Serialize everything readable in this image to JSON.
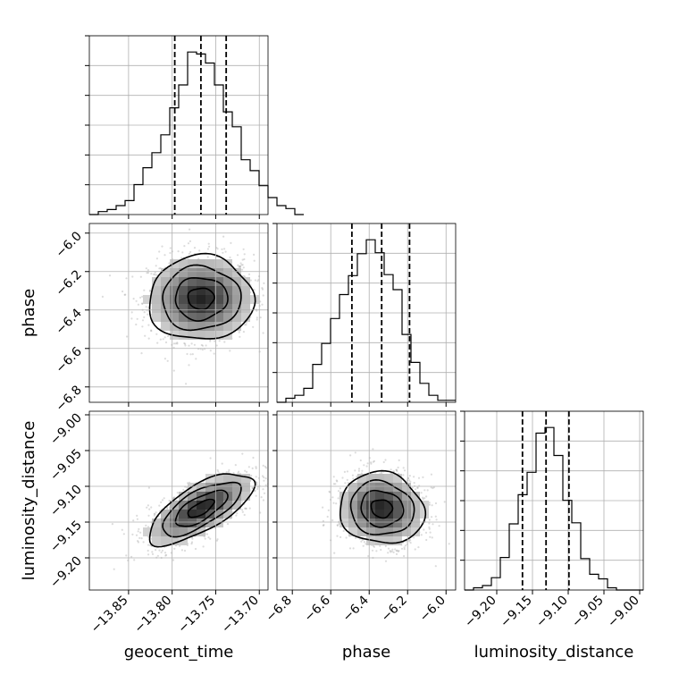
{
  "chart_data": {
    "type": "corner",
    "parameters": [
      "geocent_time",
      "phase",
      "luminosity_distance"
    ],
    "ranges": [
      [
        -13.895,
        -13.69
      ],
      [
        -6.88,
        -5.95
      ],
      [
        -9.245,
        -8.995
      ]
    ],
    "ticks": [
      [
        -13.85,
        -13.8,
        -13.75,
        -13.7
      ],
      [
        -6.8,
        -6.6,
        -6.4,
        -6.2,
        -6.0
      ],
      [
        -9.2,
        -9.15,
        -9.1,
        -9.05,
        -9.0
      ]
    ],
    "tick_labels": [
      [
        "−13.85",
        "−13.80",
        "−13.75",
        "−13.70"
      ],
      [
        "−6.8",
        "−6.6",
        "−6.4",
        "−6.2",
        "−6.0"
      ],
      [
        "−9.20",
        "−9.15",
        "−9.10",
        "−9.05",
        "−9.00"
      ]
    ],
    "quantiles": [
      [
        -13.797,
        -13.767,
        -13.738
      ],
      [
        -6.49,
        -6.335,
        -6.19
      ],
      [
        -9.164,
        -9.131,
        -9.099
      ]
    ],
    "histograms": [
      {
        "parameter": "geocent_time",
        "bin_start": -13.895,
        "bin_width": 0.01025,
        "counts": [
          0,
          3,
          5,
          9,
          14,
          30,
          47,
          62,
          80,
          107,
          130,
          163,
          161,
          152,
          130,
          103,
          88,
          55,
          44,
          29,
          17,
          9,
          6,
          0
        ]
      },
      {
        "parameter": "phase",
        "bin_start": -6.88,
        "bin_width": 0.0465,
        "counts": [
          0,
          4,
          7,
          14,
          38,
          59,
          84,
          108,
          127,
          149,
          163,
          150,
          128,
          113,
          68,
          40,
          19,
          7,
          2,
          2
        ]
      },
      {
        "parameter": "luminosity_distance",
        "bin_start": -9.245,
        "bin_width": 0.0125,
        "counts": [
          0,
          2,
          4,
          11,
          29,
          59,
          85,
          105,
          140,
          145,
          120,
          80,
          60,
          28,
          14,
          10,
          2,
          0,
          0,
          0
        ]
      }
    ],
    "joint": [
      {
        "x": "geocent_time",
        "y": "phase",
        "mean": [
          -13.767,
          -6.34
        ],
        "sd": [
          0.03,
          0.11
        ],
        "corr": 0.02
      },
      {
        "x": "geocent_time",
        "y": "luminosity_distance",
        "mean": [
          -13.767,
          -9.131
        ],
        "sd": [
          0.03,
          0.025
        ],
        "corr": 0.7
      },
      {
        "x": "phase",
        "y": "luminosity_distance",
        "mean": [
          -6.335,
          -9.131
        ],
        "sd": [
          0.11,
          0.025
        ],
        "corr": -0.08
      }
    ],
    "grid": true,
    "colors": {
      "hist": "#000000",
      "contour": "#000000",
      "scatter": "#9a9a9a",
      "grid": "#b0b0b0"
    }
  }
}
